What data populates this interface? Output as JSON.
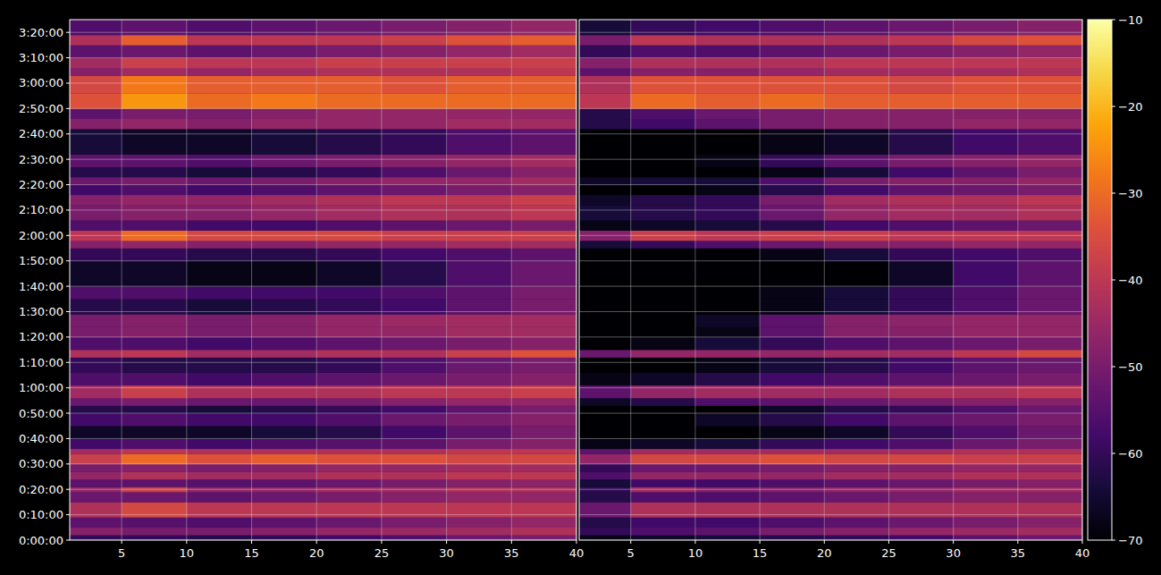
{
  "chart_data": [
    {
      "type": "heatmap",
      "grid": true,
      "tick_labels": true,
      "xlim": [
        1,
        40
      ],
      "ylim": [
        0,
        12300
      ],
      "xticks": [
        5,
        10,
        15,
        20,
        25,
        30,
        35,
        40
      ],
      "yticks": [
        {
          "value": 0,
          "label": "0:00:00"
        },
        {
          "value": 600,
          "label": "0:10:00"
        },
        {
          "value": 1200,
          "label": "0:20:00"
        },
        {
          "value": 1800,
          "label": "0:30:00"
        },
        {
          "value": 2400,
          "label": "0:40:00"
        },
        {
          "value": 3000,
          "label": "0:50:00"
        },
        {
          "value": 3600,
          "label": "1:00:00"
        },
        {
          "value": 4200,
          "label": "1:10:00"
        },
        {
          "value": 4800,
          "label": "1:20:00"
        },
        {
          "value": 5400,
          "label": "1:30:00"
        },
        {
          "value": 6000,
          "label": "1:40:00"
        },
        {
          "value": 6600,
          "label": "1:50:00"
        },
        {
          "value": 7200,
          "label": "2:00:00"
        },
        {
          "value": 7800,
          "label": "2:10:00"
        },
        {
          "value": 8400,
          "label": "2:20:00"
        },
        {
          "value": 9000,
          "label": "2:30:00"
        },
        {
          "value": 9600,
          "label": "2:40:00"
        },
        {
          "value": 10200,
          "label": "2:50:00"
        },
        {
          "value": 10800,
          "label": "3:00:00"
        },
        {
          "value": 11400,
          "label": "3:10:00"
        },
        {
          "value": 12000,
          "label": "3:20:00"
        }
      ],
      "x_edges": [
        1,
        5,
        10,
        15,
        20,
        25,
        30,
        35,
        40
      ],
      "y_edges": [
        0,
        120,
        300,
        540,
        900,
        1140,
        1260,
        1440,
        1620,
        1800,
        2040,
        2160,
        2400,
        2700,
        3000,
        3180,
        3360,
        3660,
        3960,
        4320,
        4500,
        4800,
        5040,
        5340,
        5700,
        6000,
        6600,
        6900,
        7080,
        7320,
        7560,
        7920,
        8160,
        8400,
        8580,
        8820,
        9120,
        9720,
        9960,
        10200,
        10560,
        10980,
        11160,
        11400,
        11700,
        11940,
        12300
      ],
      "values": [
        [
          -60,
          -60,
          -62,
          -60,
          -58,
          -56,
          -52,
          -50
        ],
        [
          -48,
          -50,
          -50,
          -48,
          -46,
          -45,
          -44,
          -42
        ],
        [
          -54,
          -55,
          -56,
          -54,
          -52,
          -50,
          -48,
          -46
        ],
        [
          -42,
          -36,
          -40,
          -40,
          -40,
          -40,
          -40,
          -40
        ],
        [
          -52,
          -52,
          -54,
          -52,
          -50,
          -48,
          -46,
          -46
        ],
        [
          -46,
          -38,
          -46,
          -46,
          -44,
          -44,
          -42,
          -42
        ],
        [
          -54,
          -54,
          -55,
          -54,
          -52,
          -50,
          -48,
          -47
        ],
        [
          -46,
          -42,
          -44,
          -44,
          -42,
          -42,
          -40,
          -40
        ],
        [
          -50,
          -48,
          -50,
          -48,
          -46,
          -46,
          -44,
          -44
        ],
        [
          -38,
          -30,
          -34,
          -32,
          -34,
          -34,
          -36,
          -36
        ],
        [
          -44,
          -40,
          -42,
          -42,
          -42,
          -42,
          -40,
          -40
        ],
        [
          -58,
          -56,
          -58,
          -56,
          -55,
          -54,
          -50,
          -48
        ],
        [
          -66,
          -66,
          -66,
          -64,
          -62,
          -58,
          -54,
          -50
        ],
        [
          -58,
          -56,
          -58,
          -58,
          -56,
          -52,
          -50,
          -48
        ],
        [
          -62,
          -62,
          -64,
          -62,
          -60,
          -58,
          -54,
          -50
        ],
        [
          -52,
          -50,
          -52,
          -52,
          -50,
          -48,
          -46,
          -46
        ],
        [
          -44,
          -38,
          -42,
          -42,
          -42,
          -40,
          -40,
          -38
        ],
        [
          -56,
          -56,
          -58,
          -56,
          -54,
          -52,
          -50,
          -48
        ],
        [
          -60,
          -62,
          -62,
          -62,
          -60,
          -56,
          -52,
          -50
        ],
        [
          -42,
          -40,
          -44,
          -44,
          -42,
          -42,
          -38,
          -34
        ],
        [
          -56,
          -56,
          -58,
          -56,
          -54,
          -52,
          -50,
          -48
        ],
        [
          -50,
          -48,
          -50,
          -48,
          -46,
          -46,
          -44,
          -44
        ],
        [
          -50,
          -48,
          -50,
          -48,
          -46,
          -45,
          -44,
          -44
        ],
        [
          -62,
          -62,
          -64,
          -62,
          -60,
          -58,
          -54,
          -50
        ],
        [
          -56,
          -56,
          -58,
          -58,
          -58,
          -56,
          -54,
          -50
        ],
        [
          -66,
          -66,
          -68,
          -68,
          -66,
          -62,
          -56,
          -52
        ],
        [
          -60,
          -60,
          -62,
          -62,
          -60,
          -58,
          -56,
          -54
        ],
        [
          -48,
          -46,
          -48,
          -48,
          -46,
          -46,
          -44,
          -44
        ],
        [
          -40,
          -30,
          -36,
          -36,
          -36,
          -38,
          -38,
          -38
        ],
        [
          -56,
          -56,
          -58,
          -58,
          -56,
          -54,
          -52,
          -50
        ],
        [
          -50,
          -48,
          -48,
          -46,
          -44,
          -42,
          -42,
          -40
        ],
        [
          -48,
          -46,
          -46,
          -44,
          -42,
          -40,
          -40,
          -38
        ],
        [
          -58,
          -56,
          -58,
          -56,
          -54,
          -52,
          -50,
          -48
        ],
        [
          -52,
          -50,
          -52,
          -50,
          -48,
          -46,
          -46,
          -44
        ],
        [
          -62,
          -62,
          -64,
          -62,
          -60,
          -56,
          -52,
          -48
        ],
        [
          -54,
          -54,
          -56,
          -52,
          -50,
          -48,
          -46,
          -44
        ],
        [
          -64,
          -66,
          -66,
          -64,
          -62,
          -60,
          -56,
          -54
        ],
        [
          -48,
          -46,
          -48,
          -46,
          -46,
          -46,
          -44,
          -44
        ],
        [
          -54,
          -50,
          -50,
          -48,
          -46,
          -46,
          -46,
          -46
        ],
        [
          -34,
          -24,
          -30,
          -28,
          -30,
          -30,
          -30,
          -30
        ],
        [
          -36,
          -28,
          -32,
          -32,
          -32,
          -34,
          -32,
          -32
        ],
        [
          -48,
          -44,
          -46,
          -44,
          -42,
          -42,
          -42,
          -40
        ],
        [
          -44,
          -38,
          -40,
          -40,
          -38,
          -38,
          -38,
          -38
        ],
        [
          -54,
          -52,
          -54,
          -52,
          -50,
          -48,
          -46,
          -44
        ],
        [
          -42,
          -32,
          -40,
          -40,
          -40,
          -38,
          -34,
          -32
        ],
        [
          -56,
          -54,
          -56,
          -54,
          -52,
          -50,
          -48,
          -46
        ]
      ]
    },
    {
      "type": "heatmap",
      "grid": true,
      "tick_labels": "x",
      "xlim": [
        1,
        40
      ],
      "ylim": [
        0,
        12300
      ],
      "xticks": [
        5,
        10,
        15,
        20,
        25,
        30,
        35,
        40
      ],
      "yticks": [
        0,
        600,
        1200,
        1800,
        2400,
        3000,
        3600,
        4200,
        4800,
        5400,
        6000,
        6600,
        7200,
        7800,
        8400,
        9000,
        9600,
        10200,
        10800,
        11400,
        12000
      ],
      "x_edges": [
        1,
        5,
        10,
        15,
        20,
        25,
        30,
        35,
        40
      ],
      "y_edges": [
        0,
        120,
        300,
        540,
        900,
        1140,
        1260,
        1440,
        1620,
        1800,
        2040,
        2160,
        2400,
        2700,
        3000,
        3180,
        3360,
        3660,
        3960,
        4320,
        4500,
        4800,
        5040,
        5340,
        5700,
        6000,
        6600,
        6900,
        7080,
        7320,
        7560,
        7920,
        8160,
        8400,
        8580,
        8820,
        9120,
        9720,
        9960,
        10200,
        10560,
        10980,
        11160,
        11400,
        11700,
        11940,
        12300
      ],
      "values": [
        [
          -68,
          -66,
          -64,
          -62,
          -60,
          -58,
          -54,
          -52
        ],
        [
          -60,
          -56,
          -54,
          -50,
          -48,
          -46,
          -45,
          -44
        ],
        [
          -62,
          -58,
          -58,
          -56,
          -54,
          -52,
          -50,
          -48
        ],
        [
          -52,
          -42,
          -42,
          -42,
          -42,
          -42,
          -42,
          -42
        ],
        [
          -62,
          -56,
          -56,
          -54,
          -52,
          -50,
          -48,
          -48
        ],
        [
          -60,
          -44,
          -48,
          -48,
          -46,
          -46,
          -44,
          -44
        ],
        [
          -64,
          -58,
          -58,
          -56,
          -54,
          -52,
          -50,
          -48
        ],
        [
          -56,
          -46,
          -46,
          -46,
          -44,
          -44,
          -42,
          -42
        ],
        [
          -60,
          -52,
          -52,
          -50,
          -48,
          -48,
          -46,
          -46
        ],
        [
          -46,
          -36,
          -36,
          -34,
          -36,
          -36,
          -38,
          -38
        ],
        [
          -54,
          -44,
          -44,
          -44,
          -44,
          -44,
          -42,
          -42
        ],
        [
          -68,
          -66,
          -64,
          -60,
          -58,
          -56,
          -52,
          -50
        ],
        [
          -70,
          -70,
          -70,
          -68,
          -66,
          -60,
          -56,
          -52
        ],
        [
          -70,
          -70,
          -66,
          -62,
          -58,
          -54,
          -52,
          -50
        ],
        [
          -70,
          -70,
          -70,
          -66,
          -62,
          -60,
          -56,
          -52
        ],
        [
          -66,
          -62,
          -56,
          -54,
          -52,
          -50,
          -48,
          -48
        ],
        [
          -54,
          -46,
          -44,
          -44,
          -44,
          -42,
          -42,
          -40
        ],
        [
          -68,
          -66,
          -62,
          -58,
          -56,
          -54,
          -52,
          -50
        ],
        [
          -70,
          -70,
          -68,
          -64,
          -62,
          -58,
          -54,
          -52
        ],
        [
          -52,
          -46,
          -46,
          -46,
          -44,
          -44,
          -40,
          -36
        ],
        [
          -70,
          -68,
          -64,
          -60,
          -56,
          -54,
          -52,
          -50
        ],
        [
          -70,
          -70,
          -68,
          -54,
          -48,
          -48,
          -46,
          -46
        ],
        [
          -70,
          -70,
          -66,
          -54,
          -48,
          -47,
          -46,
          -46
        ],
        [
          -70,
          -70,
          -70,
          -68,
          -64,
          -60,
          -56,
          -52
        ],
        [
          -70,
          -70,
          -70,
          -68,
          -64,
          -60,
          -56,
          -52
        ],
        [
          -70,
          -70,
          -70,
          -70,
          -70,
          -66,
          -58,
          -54
        ],
        [
          -70,
          -70,
          -70,
          -68,
          -64,
          -60,
          -58,
          -56
        ],
        [
          -64,
          -60,
          -56,
          -52,
          -48,
          -48,
          -46,
          -46
        ],
        [
          -48,
          -38,
          -40,
          -38,
          -38,
          -40,
          -40,
          -40
        ],
        [
          -68,
          -66,
          -64,
          -62,
          -58,
          -56,
          -54,
          -52
        ],
        [
          -64,
          -62,
          -60,
          -52,
          -46,
          -44,
          -44,
          -42
        ],
        [
          -66,
          -62,
          -60,
          -50,
          -44,
          -42,
          -42,
          -40
        ],
        [
          -70,
          -70,
          -68,
          -62,
          -58,
          -54,
          -52,
          -50
        ],
        [
          -66,
          -64,
          -64,
          -56,
          -50,
          -48,
          -48,
          -46
        ],
        [
          -70,
          -70,
          -70,
          -68,
          -64,
          -58,
          -54,
          -50
        ],
        [
          -70,
          -70,
          -68,
          -60,
          -54,
          -50,
          -48,
          -46
        ],
        [
          -70,
          -70,
          -70,
          -68,
          -66,
          -62,
          -58,
          -56
        ],
        [
          -62,
          -58,
          -54,
          -50,
          -48,
          -48,
          -46,
          -46
        ],
        [
          -62,
          -56,
          -52,
          -50,
          -48,
          -48,
          -48,
          -48
        ],
        [
          -40,
          -30,
          -32,
          -30,
          -32,
          -32,
          -32,
          -32
        ],
        [
          -42,
          -34,
          -34,
          -34,
          -34,
          -36,
          -34,
          -34
        ],
        [
          -54,
          -48,
          -48,
          -46,
          -44,
          -44,
          -44,
          -42
        ],
        [
          -48,
          -42,
          -42,
          -42,
          -40,
          -40,
          -40,
          -40
        ],
        [
          -60,
          -56,
          -56,
          -54,
          -52,
          -50,
          -48,
          -46
        ],
        [
          -50,
          -40,
          -42,
          -42,
          -42,
          -40,
          -36,
          -34
        ],
        [
          -64,
          -60,
          -58,
          -56,
          -54,
          -52,
          -50,
          -48
        ]
      ],
      "colorbar": {
        "zlim": [
          -70,
          -10
        ],
        "zticks": [
          {
            "value": -70,
            "label": "−70"
          },
          {
            "value": -60,
            "label": "−60"
          },
          {
            "value": -50,
            "label": "−50"
          },
          {
            "value": -40,
            "label": "−40"
          },
          {
            "value": -30,
            "label": "−30"
          },
          {
            "value": -20,
            "label": "−20"
          },
          {
            "value": -10,
            "label": "−10"
          }
        ]
      }
    }
  ]
}
